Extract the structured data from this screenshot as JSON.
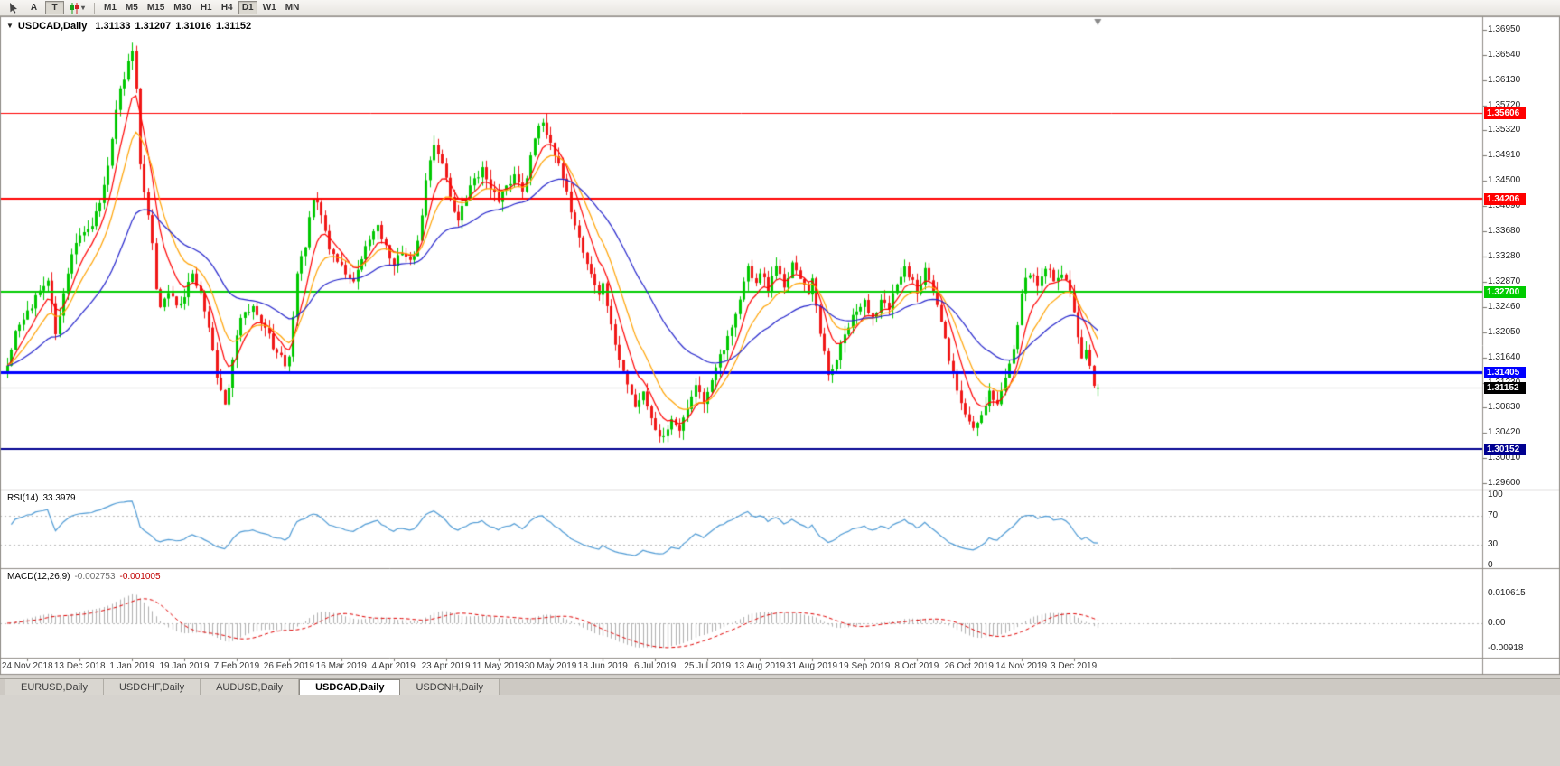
{
  "toolbar": {
    "text_buttons": [
      {
        "label": "A",
        "active": false
      },
      {
        "label": "T",
        "active": true
      }
    ],
    "timeframes": [
      "M1",
      "M5",
      "M15",
      "M30",
      "H1",
      "H4",
      "D1",
      "W1",
      "MN"
    ],
    "active_timeframe": "D1"
  },
  "chart_header": {
    "collapse_icon": "▼",
    "symbol_label": "USDCAD,Daily",
    "open": "1.31133",
    "high": "1.31207",
    "low": "1.31016",
    "close": "1.31152"
  },
  "bottom_tabs": {
    "items": [
      "EURUSD,Daily",
      "USDCHF,Daily",
      "AUDUSD,Daily",
      "USDCAD,Daily",
      "USDCNH,Daily"
    ],
    "active": "USDCAD,Daily"
  },
  "chart_data": {
    "type": "candlestick",
    "symbol": "USDCAD",
    "timeframe": "Daily",
    "last_bar": {
      "open": 1.31133,
      "high": 1.31207,
      "low": 1.31016,
      "close": 1.31152
    },
    "bid": {
      "value": 1.31152,
      "label": "1.31152",
      "badge_color": "#000000",
      "line_color": "#c0c0c0"
    },
    "price_axis": {
      "ticks": [
        "1.36950",
        "1.36540",
        "1.36130",
        "1.35720",
        "1.35320",
        "1.34910",
        "1.34500",
        "1.34090",
        "1.33680",
        "1.33280",
        "1.32870",
        "1.32460",
        "1.32050",
        "1.31640",
        "1.31230",
        "1.30830",
        "1.30420",
        "1.30010",
        "1.29600"
      ]
    },
    "levels": [
      {
        "value": 1.35606,
        "label": "1.35606",
        "color": "#ff0000",
        "width": 1
      },
      {
        "value": 1.34206,
        "label": "1.34206",
        "color": "#ff0000",
        "width": 2
      },
      {
        "value": 1.327,
        "label": "1.32700",
        "color": "#00cc00",
        "width": 2
      },
      {
        "value": 1.31405,
        "label": "1.31405",
        "color": "#0000ff",
        "width": 3
      },
      {
        "value": 1.30152,
        "label": "1.30152",
        "color": "#000090",
        "width": 2
      }
    ],
    "date_labels": [
      {
        "i": 5,
        "label": "24 Nov 2018"
      },
      {
        "i": 18,
        "label": "13 Dec 2018"
      },
      {
        "i": 31,
        "label": "1 Jan 2019"
      },
      {
        "i": 44,
        "label": "19 Jan 2019"
      },
      {
        "i": 57,
        "label": "7 Feb 2019"
      },
      {
        "i": 70,
        "label": "26 Feb 2019"
      },
      {
        "i": 83,
        "label": "16 Mar 2019"
      },
      {
        "i": 96,
        "label": "4 Apr 2019"
      },
      {
        "i": 109,
        "label": "23 Apr 2019"
      },
      {
        "i": 122,
        "label": "11 May 2019"
      },
      {
        "i": 135,
        "label": "30 May 2019"
      },
      {
        "i": 148,
        "label": "18 Jun 2019"
      },
      {
        "i": 161,
        "label": "6 Jul 2019"
      },
      {
        "i": 174,
        "label": "25 Jul 2019"
      },
      {
        "i": 187,
        "label": "13 Aug 2019"
      },
      {
        "i": 200,
        "label": "31 Aug 2019"
      },
      {
        "i": 213,
        "label": "19 Sep 2019"
      },
      {
        "i": 226,
        "label": "8 Oct 2019"
      },
      {
        "i": 239,
        "label": "26 Oct 2019"
      },
      {
        "i": 252,
        "label": "14 Nov 2019"
      },
      {
        "i": 265,
        "label": "3 Dec 2019"
      }
    ],
    "num_bars": 272,
    "up_color": "#00c800",
    "down_color": "#f01818",
    "mas": [
      {
        "period": 7,
        "color": "#ff0000"
      },
      {
        "period": 13,
        "color": "#ffa200"
      },
      {
        "period": 34,
        "color": "#2424cc"
      }
    ],
    "rsi": {
      "label": "RSI(14)",
      "value": "33.3979",
      "period": 14,
      "color": "#4f9bd5",
      "levels": [
        70,
        30
      ],
      "axis": [
        {
          "v": 100,
          "label": "100"
        },
        {
          "v": 70,
          "label": "70"
        },
        {
          "v": 30,
          "label": "30"
        },
        {
          "v": 0,
          "label": "0"
        }
      ]
    },
    "macd": {
      "label": "MACD(12,26,9)",
      "value_main": "-0.002753",
      "value_signal": "-0.001005",
      "fast": 12,
      "slow": 26,
      "signal": 9,
      "hist_color": "#b0b0b0",
      "signal_color": "#e00000",
      "axis": [
        {
          "v": 0.010615,
          "label": "0.010615"
        },
        {
          "v": 0,
          "label": "0.00"
        },
        {
          "v": -0.00918,
          "label": "-0.00918"
        }
      ]
    },
    "seed": 42,
    "noise": 0.0009,
    "wick": 0.0016,
    "close_anchors": [
      [
        0,
        1.315
      ],
      [
        2,
        1.3205
      ],
      [
        5,
        1.324
      ],
      [
        8,
        1.327
      ],
      [
        10,
        1.329
      ],
      [
        12,
        1.32
      ],
      [
        14,
        1.327
      ],
      [
        16,
        1.333
      ],
      [
        18,
        1.3365
      ],
      [
        20,
        1.337
      ],
      [
        22,
        1.34
      ],
      [
        24,
        1.3445
      ],
      [
        26,
        1.352
      ],
      [
        28,
        1.36
      ],
      [
        30,
        1.3645
      ],
      [
        31,
        1.366
      ],
      [
        32,
        1.36
      ],
      [
        33,
        1.3475
      ],
      [
        35,
        1.3395
      ],
      [
        38,
        1.3245
      ],
      [
        40,
        1.327
      ],
      [
        42,
        1.325
      ],
      [
        44,
        1.326
      ],
      [
        46,
        1.33
      ],
      [
        48,
        1.327
      ],
      [
        50,
        1.3215
      ],
      [
        52,
        1.313
      ],
      [
        54,
        1.3085
      ],
      [
        56,
        1.316
      ],
      [
        57,
        1.32
      ],
      [
        59,
        1.324
      ],
      [
        61,
        1.325
      ],
      [
        63,
        1.322
      ],
      [
        65,
        1.32
      ],
      [
        67,
        1.317
      ],
      [
        69,
        1.315
      ],
      [
        70,
        1.3165
      ],
      [
        71,
        1.323
      ],
      [
        72,
        1.33
      ],
      [
        74,
        1.3345
      ],
      [
        76,
        1.342
      ],
      [
        78,
        1.3395
      ],
      [
        80,
        1.334
      ],
      [
        82,
        1.332
      ],
      [
        84,
        1.33
      ],
      [
        86,
        1.3285
      ],
      [
        88,
        1.332
      ],
      [
        90,
        1.3355
      ],
      [
        92,
        1.338
      ],
      [
        94,
        1.3345
      ],
      [
        96,
        1.331
      ],
      [
        98,
        1.3335
      ],
      [
        100,
        1.332
      ],
      [
        102,
        1.335
      ],
      [
        104,
        1.345
      ],
      [
        106,
        1.351
      ],
      [
        108,
        1.348
      ],
      [
        110,
        1.3425
      ],
      [
        112,
        1.3385
      ],
      [
        114,
        1.342
      ],
      [
        116,
        1.3455
      ],
      [
        118,
        1.347
      ],
      [
        120,
        1.344
      ],
      [
        122,
        1.3415
      ],
      [
        124,
        1.344
      ],
      [
        126,
        1.346
      ],
      [
        128,
        1.3435
      ],
      [
        130,
        1.349
      ],
      [
        132,
        1.354
      ],
      [
        133,
        1.3545
      ],
      [
        134,
        1.3525
      ],
      [
        135,
        1.3515
      ],
      [
        137,
        1.3475
      ],
      [
        139,
        1.343
      ],
      [
        141,
        1.338
      ],
      [
        143,
        1.3335
      ],
      [
        145,
        1.33
      ],
      [
        147,
        1.3265
      ],
      [
        148,
        1.3285
      ],
      [
        150,
        1.3215
      ],
      [
        152,
        1.316
      ],
      [
        154,
        1.312
      ],
      [
        156,
        1.3085
      ],
      [
        158,
        1.311
      ],
      [
        160,
        1.3065
      ],
      [
        161,
        1.3048
      ],
      [
        163,
        1.3035
      ],
      [
        165,
        1.3066
      ],
      [
        167,
        1.3048
      ],
      [
        169,
        1.3082
      ],
      [
        171,
        1.312
      ],
      [
        173,
        1.3088
      ],
      [
        174,
        1.3106
      ],
      [
        176,
        1.315
      ],
      [
        178,
        1.3175
      ],
      [
        180,
        1.321
      ],
      [
        182,
        1.326
      ],
      [
        184,
        1.331
      ],
      [
        186,
        1.3285
      ],
      [
        187,
        1.33
      ],
      [
        189,
        1.327
      ],
      [
        191,
        1.331
      ],
      [
        193,
        1.328
      ],
      [
        195,
        1.332
      ],
      [
        197,
        1.329
      ],
      [
        199,
        1.3265
      ],
      [
        200,
        1.329
      ],
      [
        202,
        1.32
      ],
      [
        204,
        1.3135
      ],
      [
        206,
        1.316
      ],
      [
        208,
        1.32
      ],
      [
        210,
        1.323
      ],
      [
        213,
        1.3255
      ],
      [
        215,
        1.323
      ],
      [
        217,
        1.326
      ],
      [
        219,
        1.324
      ],
      [
        221,
        1.328
      ],
      [
        223,
        1.331
      ],
      [
        225,
        1.329
      ],
      [
        226,
        1.327
      ],
      [
        228,
        1.331
      ],
      [
        230,
        1.327
      ],
      [
        232,
        1.322
      ],
      [
        234,
        1.316
      ],
      [
        236,
        1.311
      ],
      [
        238,
        1.3072
      ],
      [
        240,
        1.305
      ],
      [
        242,
        1.3072
      ],
      [
        244,
        1.311
      ],
      [
        246,
        1.3088
      ],
      [
        248,
        1.313
      ],
      [
        250,
        1.318
      ],
      [
        252,
        1.327
      ],
      [
        254,
        1.33
      ],
      [
        256,
        1.328
      ],
      [
        258,
        1.331
      ],
      [
        260,
        1.329
      ],
      [
        262,
        1.33
      ],
      [
        264,
        1.3272
      ],
      [
        265,
        1.3238
      ],
      [
        266,
        1.3196
      ],
      [
        267,
        1.3162
      ],
      [
        268,
        1.3176
      ],
      [
        269,
        1.315
      ],
      [
        270,
        1.3118
      ],
      [
        271,
        1.31152
      ]
    ]
  }
}
